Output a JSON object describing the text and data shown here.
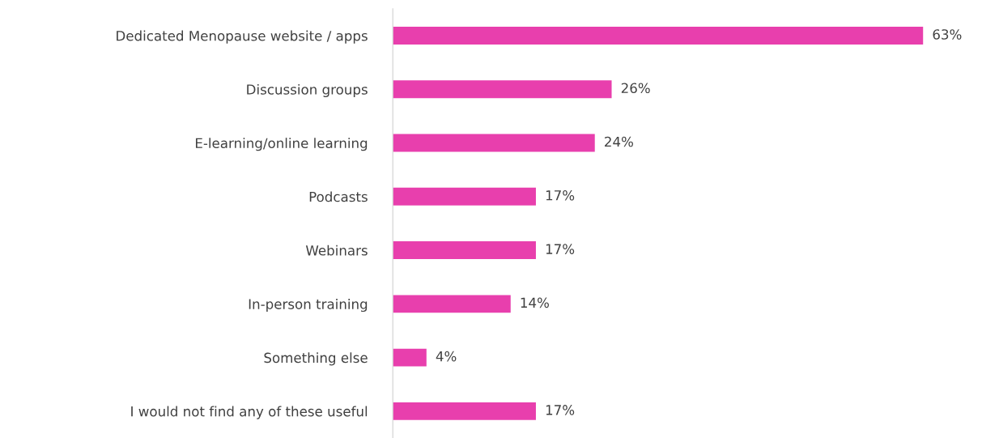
{
  "chart_data": {
    "type": "bar",
    "orientation": "horizontal",
    "categories": [
      "Dedicated Menopause website / apps",
      "Discussion groups",
      "E-learning/online learning",
      "Podcasts",
      "Webinars",
      "In-person training",
      "Something else",
      "I would not find any of these useful"
    ],
    "values": [
      63,
      26,
      24,
      17,
      17,
      14,
      4,
      17
    ],
    "value_labels": [
      "63%",
      "26%",
      "24%",
      "17%",
      "17%",
      "14%",
      "4%",
      "17%"
    ],
    "color": "#e83fad",
    "grid": false,
    "legend": false,
    "tick_labels": "y"
  }
}
